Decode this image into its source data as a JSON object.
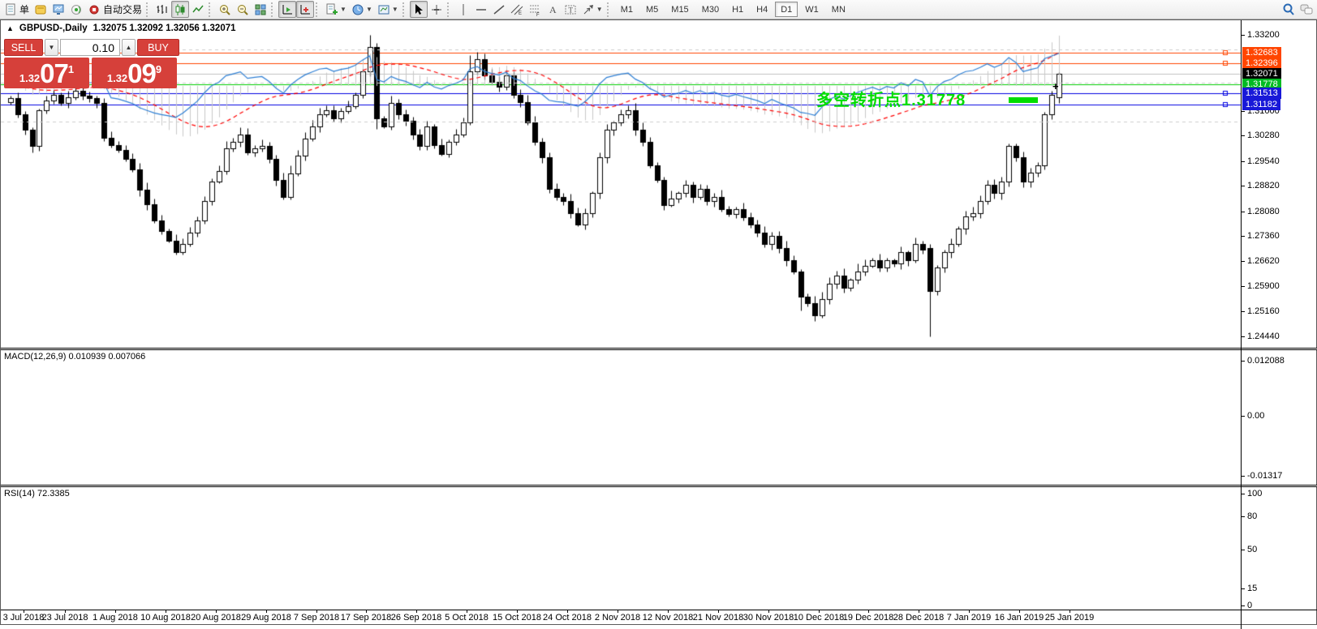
{
  "toolbar": {
    "items": [
      {
        "name": "new-order",
        "icon": "doc",
        "label": "单"
      },
      {
        "name": "chart-profile",
        "icon": "gold"
      },
      {
        "name": "market-watch",
        "icon": "monitor"
      },
      {
        "name": "signals",
        "icon": "signal"
      },
      {
        "name": "autotrading",
        "icon": "autotrade",
        "label": "自动交易"
      },
      {
        "name": "sep1",
        "sep": true
      },
      {
        "name": "bar-chart",
        "icon": "bars"
      },
      {
        "name": "candle-chart",
        "icon": "candles",
        "pressed": true
      },
      {
        "name": "line-chart",
        "icon": "linechart"
      },
      {
        "name": "sep2",
        "sep": true
      },
      {
        "name": "zoom-in",
        "icon": "zoomin"
      },
      {
        "name": "zoom-out",
        "icon": "zoomout"
      },
      {
        "name": "tile-windows",
        "icon": "tile"
      },
      {
        "name": "sep3",
        "sep": true
      },
      {
        "name": "auto-scroll",
        "icon": "autoscroll",
        "pressed": true
      },
      {
        "name": "chart-shift",
        "icon": "shift",
        "pressed": true
      },
      {
        "name": "sep4",
        "sep": true
      },
      {
        "name": "indicators",
        "icon": "addind",
        "dropdown": true
      },
      {
        "name": "periods",
        "icon": "clock",
        "dropdown": true
      },
      {
        "name": "templates",
        "icon": "template",
        "dropdown": true
      },
      {
        "name": "sep5",
        "sep": true
      },
      {
        "name": "cursor",
        "icon": "cursor",
        "pressed": true
      },
      {
        "name": "crosshair",
        "icon": "crosshair"
      },
      {
        "name": "sep6",
        "sep": true
      },
      {
        "name": "vertical-line",
        "icon": "vline"
      },
      {
        "name": "horizontal-line",
        "icon": "hline"
      },
      {
        "name": "trendline",
        "icon": "tline"
      },
      {
        "name": "equidistant-channel",
        "icon": "channel"
      },
      {
        "name": "fibonacci",
        "icon": "fibo"
      },
      {
        "name": "text",
        "icon": "textA"
      },
      {
        "name": "text-label",
        "icon": "labelT"
      },
      {
        "name": "arrows",
        "icon": "arrow",
        "dropdown": true
      }
    ],
    "timeframes": {
      "items": [
        "M1",
        "M5",
        "M15",
        "M30",
        "H1",
        "H4",
        "D1",
        "W1",
        "MN"
      ],
      "active": "D1"
    },
    "right_items": [
      {
        "name": "search",
        "icon": "search"
      },
      {
        "name": "chat",
        "icon": "chat"
      }
    ]
  },
  "chart_header": {
    "collapse_icon": "▲",
    "symbol_period": "GBPUSD-,Daily",
    "ohlc": "1.32075 1.32092 1.32056 1.32071"
  },
  "trade_panel": {
    "sell_label": "SELL",
    "buy_label": "BUY",
    "volume": "0.10",
    "spin_down": "▼",
    "spin_up": "▲",
    "sell_price_small": "1.32",
    "sell_price_big": "07",
    "sell_price_sup": "1",
    "buy_price_small": "1.32",
    "buy_price_big": "09",
    "buy_price_sup": "9",
    "accent_red": "#d6403a"
  },
  "annotation": {
    "text": "多空转折点1.31778",
    "color": "#00dd00",
    "marker": "+"
  },
  "price_axis": {
    "ticks": [
      {
        "label": "1.33200",
        "value": 1.332
      },
      {
        "label": "1.31000",
        "value": 1.31
      },
      {
        "label": "1.30280",
        "value": 1.3028
      },
      {
        "label": "1.29540",
        "value": 1.2954
      },
      {
        "label": "1.28820",
        "value": 1.2882
      },
      {
        "label": "1.28080",
        "value": 1.2808
      },
      {
        "label": "1.27360",
        "value": 1.2736
      },
      {
        "label": "1.26620",
        "value": 1.2662
      },
      {
        "label": "1.25900",
        "value": 1.259
      },
      {
        "label": "1.25160",
        "value": 1.2516
      },
      {
        "label": "1.24440",
        "value": 1.2444
      }
    ],
    "chips": [
      {
        "label": "1.32683",
        "value": 1.32683,
        "bg": "#ff4500"
      },
      {
        "label": "1.32396",
        "value": 1.32396,
        "bg": "#ff4500"
      },
      {
        "label": "1.32071",
        "value": 1.32071,
        "bg": "#000000"
      },
      {
        "label": "1.31778",
        "value": 1.31778,
        "bg": "#00bb22"
      },
      {
        "label": "1.31513",
        "value": 1.31513,
        "bg": "#1818d8"
      },
      {
        "label": "1.31182",
        "value": 1.31182,
        "bg": "#1818d8"
      }
    ]
  },
  "date_axis": {
    "labels": [
      "3 Jul 2018",
      "23 Jul 2018",
      "1 Aug 2018",
      "10 Aug 2018",
      "20 Aug 2018",
      "29 Aug 2018",
      "7 Sep 2018",
      "17 Sep 2018",
      "26 Sep 2018",
      "5 Oct 2018",
      "15 Oct 2018",
      "24 Oct 2018",
      "2 Nov 2018",
      "12 Nov 2018",
      "21 Nov 2018",
      "30 Nov 2018",
      "10 Dec 2018",
      "19 Dec 2018",
      "28 Dec 2018",
      "7 Jan 2019",
      "16 Jan 2019",
      "25 Jan 2019"
    ]
  },
  "indicators": {
    "macd": {
      "header": "MACD(12,26,9) 0.010939 0.007066",
      "axis": [
        {
          "label": "0.012088",
          "value": 0.012088
        },
        {
          "label": "0.00",
          "value": 0
        },
        {
          "label": "-0.01317",
          "value": -0.01317
        }
      ],
      "histogram_color": "#c8c8c8",
      "signal_color": "#ff0000"
    },
    "rsi": {
      "header": "RSI(14) 72.3385",
      "axis": [
        {
          "label": "100",
          "value": 100
        },
        {
          "label": "80",
          "value": 80
        },
        {
          "label": "50",
          "value": 50
        },
        {
          "label": "15",
          "value": 15
        },
        {
          "label": "0",
          "value": 0
        }
      ],
      "levels": [
        80,
        50,
        15
      ],
      "line_color": "#2e7fd4"
    }
  },
  "chart_data": {
    "type": "candlestick",
    "symbol": "GBPUSD",
    "period": "Daily",
    "ylim": [
      1.242,
      1.334
    ],
    "closes": [
      1.3136,
      1.309,
      1.3044,
      1.2998,
      1.3101,
      1.313,
      1.3147,
      1.3124,
      1.314,
      1.3158,
      1.3145,
      1.3136,
      1.3124,
      1.3021,
      1.3,
      1.2987,
      1.296,
      1.293,
      1.287,
      1.2827,
      1.2781,
      1.275,
      1.2723,
      1.2689,
      1.2712,
      1.2745,
      1.2781,
      1.2838,
      1.2895,
      1.2925,
      1.299,
      1.301,
      1.3032,
      1.298,
      1.299,
      1.2998,
      1.296,
      1.29,
      1.285,
      1.2918,
      1.297,
      1.302,
      1.3055,
      1.309,
      1.3101,
      1.3078,
      1.31,
      1.3113,
      1.3147,
      1.3216,
      1.3285,
      1.3079,
      1.3055,
      1.3124,
      1.309,
      1.307,
      1.3032,
      1.2998,
      1.3055,
      1.3,
      1.2975,
      1.3009,
      1.3032,
      1.3067,
      1.3216,
      1.325,
      1.3204,
      1.3185,
      1.317,
      1.3204,
      1.3147,
      1.3125,
      1.3067,
      1.3009,
      1.2964,
      1.2872,
      1.285,
      1.2838,
      1.2803,
      1.2769,
      1.2803,
      1.286,
      1.2964,
      1.3044,
      1.3067,
      1.309,
      1.3101,
      1.3044,
      1.3009,
      1.2941,
      1.29,
      1.2826,
      1.2845,
      1.286,
      1.2884,
      1.2849,
      1.2872,
      1.2838,
      1.2849,
      1.2815,
      1.28,
      1.2815,
      1.279,
      1.2769,
      1.2746,
      1.2712,
      1.2735,
      1.27,
      1.2666,
      1.2632,
      1.256,
      1.254,
      1.2506,
      1.2552,
      1.2598,
      1.262,
      1.2586,
      1.2609,
      1.2632,
      1.265,
      1.2666,
      1.2643,
      1.2666,
      1.2655,
      1.2689,
      1.2666,
      1.2712,
      1.2695,
      1.2575,
      1.2643,
      1.269,
      1.2712,
      1.2757,
      1.2792,
      1.2803,
      1.2838,
      1.2884,
      1.286,
      1.2895,
      1.2998,
      1.2964,
      1.2895,
      1.292,
      1.2941,
      1.309,
      1.3147,
      1.32071
    ],
    "overrides": {
      "50": {
        "o": 1.3216,
        "h": 1.332,
        "l": 1.32,
        "c": 1.3285
      },
      "51": {
        "o": 1.3285,
        "h": 1.3298,
        "l": 1.3048,
        "c": 1.3079
      },
      "64": {
        "o": 1.3067,
        "h": 1.3262,
        "l": 1.306,
        "c": 1.3216
      },
      "110": {
        "o": 1.2632,
        "h": 1.264,
        "l": 1.252,
        "c": 1.256
      },
      "128": {
        "o": 1.27,
        "h": 1.2712,
        "l": 1.2444,
        "c": 1.2575
      },
      "146": {
        "o": 1.314,
        "h": 1.3212,
        "l": 1.3122,
        "c": 1.32071
      }
    },
    "levels": [
      {
        "price": 1.32683,
        "color": "#ff4500",
        "handle": true
      },
      {
        "price": 1.32396,
        "color": "#ff4500",
        "handle": true
      },
      {
        "price": 1.32071,
        "color": "#c0c0c0",
        "handle": false
      },
      {
        "price": 1.31778,
        "color": "#00cc00",
        "handle": false
      },
      {
        "price": 1.31513,
        "color": "#0000e0",
        "handle": true
      },
      {
        "price": 1.31182,
        "color": "#0000e0",
        "handle": true
      }
    ],
    "indicator_data": {
      "macd_params": [
        12,
        26,
        9
      ],
      "macd_current": [
        0.010939,
        0.007066
      ],
      "macd_axis_range": [
        -0.01317,
        0.012088
      ],
      "rsi_period": 14,
      "rsi_current": 72.3385,
      "rsi_axis_range": [
        0,
        100
      ]
    }
  }
}
